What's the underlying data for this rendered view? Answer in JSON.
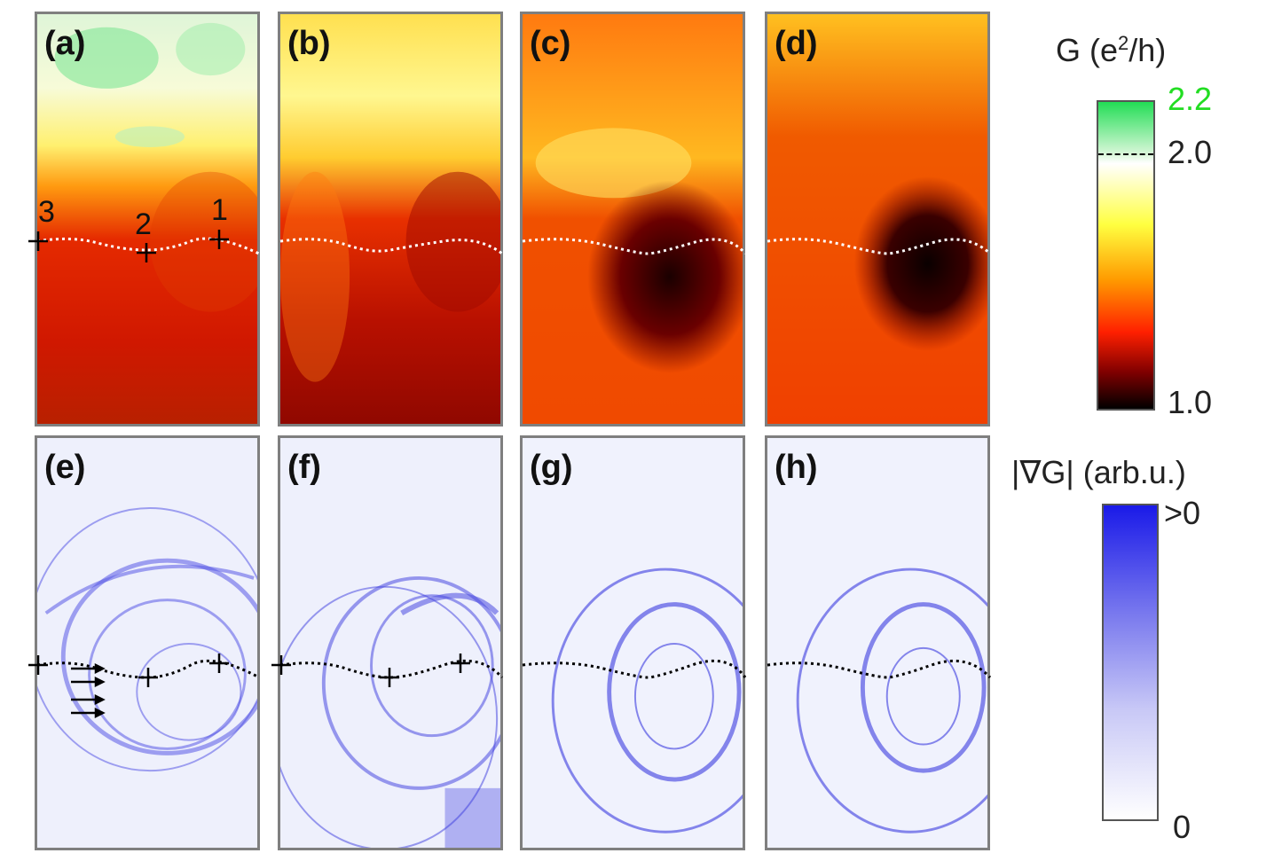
{
  "panels_top": [
    {
      "label": "(a)"
    },
    {
      "label": "(b)"
    },
    {
      "label": "(c)"
    },
    {
      "label": "(d)"
    }
  ],
  "panels_bottom": [
    {
      "label": "(e)"
    },
    {
      "label": "(f)"
    },
    {
      "label": "(g)"
    },
    {
      "label": "(h)"
    }
  ],
  "point_labels": {
    "p1": "1",
    "p2": "2",
    "p3": "3"
  },
  "colorbar_top": {
    "title_main": "G (e",
    "title_sup": "2",
    "title_tail": "/h)",
    "tick_max": "2.2",
    "tick_mid": "2.0",
    "tick_min": "1.0",
    "tick_max_color": "#22dd22"
  },
  "colorbar_bottom": {
    "title": "|∇G| (arb.u.)",
    "tick_max": ">0",
    "tick_min": "0"
  },
  "colors": {
    "gradient_blue": "#2a2ae6",
    "conductance_dark": "#1a0000",
    "conductance_red": "#e01000",
    "conductance_yellow": "#ffee30",
    "conductance_green": "#22dd55"
  }
}
